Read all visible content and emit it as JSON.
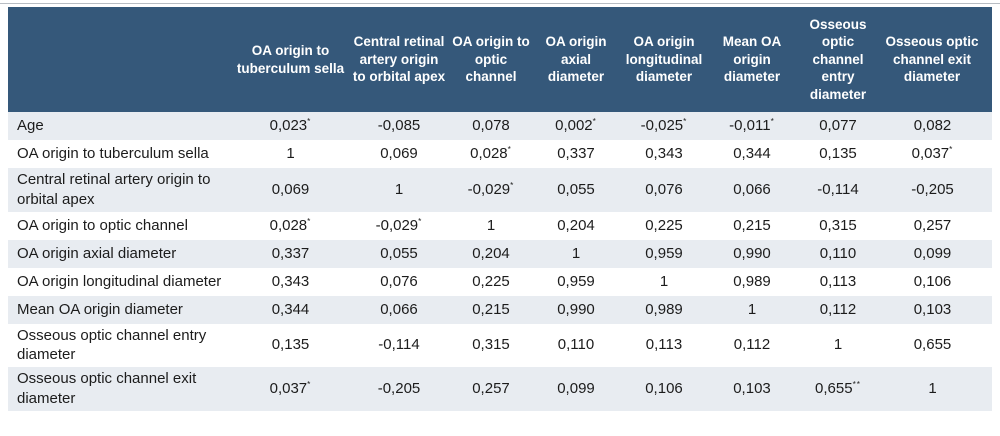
{
  "colors": {
    "header_bg": "#35587a",
    "header_text": "#ffffff",
    "row_alt_bg": "#e8ecf1",
    "row_bg": "#ffffff",
    "body_text": "#1c1c1c",
    "top_rule": "#b8bdc3"
  },
  "table": {
    "corner_label": "",
    "columns": [
      "OA origin to tuberculum sella",
      "Central retinal artery origin to orbital apex",
      "OA origin to optic channel",
      "OA origin axial diameter",
      "OA origin longitudinal diameter",
      "Mean OA origin diameter",
      "Osseous optic channel entry diameter",
      "Osseous optic channel exit diameter"
    ],
    "rows": [
      {
        "label": "Age",
        "values": [
          "0,023*",
          "-0,085",
          "0,078",
          "0,002*",
          "-0,025*",
          "-0,011*",
          "0,077",
          "0,082"
        ]
      },
      {
        "label": "OA origin to tuberculum sella",
        "values": [
          "1",
          "0,069",
          "0,028*",
          "0,337",
          "0,343",
          "0,344",
          "0,135",
          "0,037*"
        ]
      },
      {
        "label": "Central retinal artery origin to orbital apex",
        "values": [
          "0,069",
          "1",
          "-0,029*",
          "0,055",
          "0,076",
          "0,066",
          "-0,114",
          "-0,205"
        ]
      },
      {
        "label": "OA origin to optic channel",
        "values": [
          "0,028*",
          "-0,029*",
          "1",
          "0,204",
          "0,225",
          "0,215",
          "0,315",
          "0,257"
        ]
      },
      {
        "label": "OA origin axial diameter",
        "values": [
          "0,337",
          "0,055",
          "0,204",
          "1",
          "0,959",
          "0,990",
          "0,110",
          "0,099"
        ]
      },
      {
        "label": "OA origin longitudinal diameter",
        "values": [
          "0,343",
          "0,076",
          "0,225",
          "0,959",
          "1",
          "0,989",
          "0,113",
          "0,106"
        ]
      },
      {
        "label": "Mean OA origin diameter",
        "values": [
          "0,344",
          "0,066",
          "0,215",
          "0,990",
          "0,989",
          "1",
          "0,112",
          "0,103"
        ]
      },
      {
        "label": "Osseous optic channel entry diameter",
        "values": [
          "0,135",
          "-0,114",
          "0,315",
          "0,110",
          "0,113",
          "0,112",
          "1",
          "0,655"
        ]
      },
      {
        "label": "Osseous optic channel exit diameter",
        "values": [
          "0,037*",
          "-0,205",
          "0,257",
          "0,099",
          "0,106",
          "0,103",
          "0,655**",
          "1"
        ]
      }
    ]
  }
}
